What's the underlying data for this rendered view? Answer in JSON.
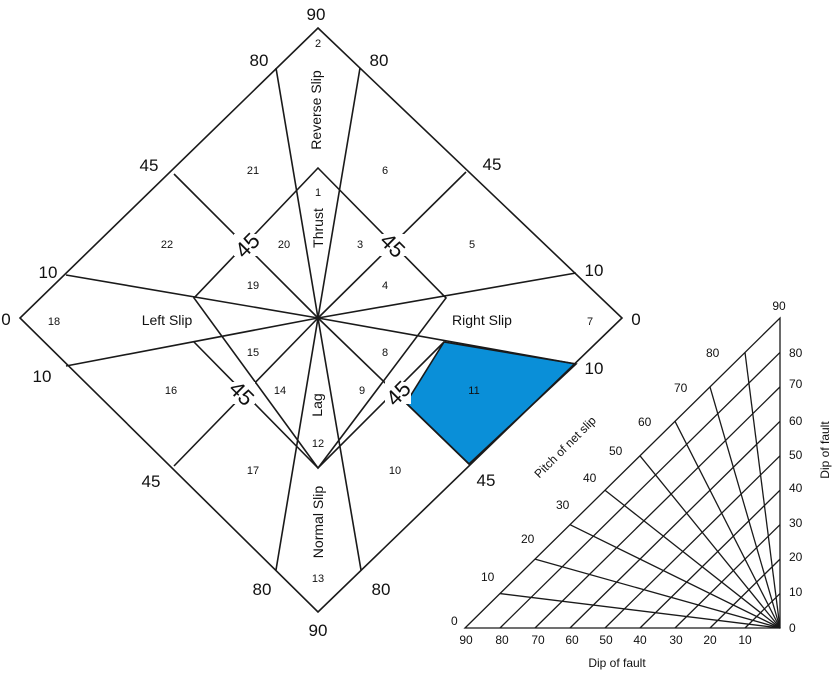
{
  "diamond": {
    "scale_labels": {
      "top": "90",
      "bottom": "90",
      "left": "0",
      "right": "0",
      "upper_left_80": "80",
      "upper_right_80": "80",
      "lower_left_80": "80",
      "lower_right_80": "80",
      "upper_left_45": "45",
      "upper_right_45": "45",
      "lower_left_45": "45",
      "lower_right_45": "45",
      "upper_left_10": "10",
      "upper_right_10": "10",
      "lower_left_10": "10",
      "lower_right_10": "10",
      "inner_45_ul": "45",
      "inner_45_ur": "45",
      "inner_45_ll": "45",
      "inner_45_lr": "45"
    },
    "regions": {
      "r1": "1",
      "r2": "2",
      "r3": "3",
      "r4": "4",
      "r5": "5",
      "r6": "6",
      "r7": "7",
      "r8": "8",
      "r9": "9",
      "r10": "10",
      "r11": "11",
      "r12": "12",
      "r13": "13",
      "r14": "14",
      "r15": "15",
      "r16": "16",
      "r17": "17",
      "r18": "18",
      "r19": "19",
      "r20": "20",
      "r21": "21",
      "r22": "22"
    },
    "region_names": {
      "reverse": "Reverse Slip",
      "thrust": "Thrust",
      "left": "Left Slip",
      "right": "Right Slip",
      "lag": "Lag",
      "normal": "Normal Slip"
    },
    "highlight_color": "#0a8fd8",
    "highlighted_region": "11"
  },
  "triangle": {
    "x_ticks": [
      "90",
      "80",
      "70",
      "60",
      "50",
      "40",
      "30",
      "20",
      "10"
    ],
    "x_label": "Dip of fault",
    "y_ticks": [
      "0",
      "10",
      "20",
      "30",
      "40",
      "50",
      "60",
      "70",
      "80"
    ],
    "y_top": "90",
    "y_label": "Dip of fault",
    "pitch_ticks": [
      "0",
      "10",
      "20",
      "30",
      "40",
      "50",
      "60",
      "70",
      "80"
    ],
    "pitch_top": "90",
    "pitch_label": "Pitch of net slip"
  }
}
